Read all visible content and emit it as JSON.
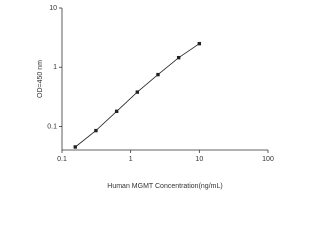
{
  "chart_data": {
    "type": "line",
    "x_label": "Human MGMT Concentration(ng/mL)",
    "y_label": "OD=450 nm",
    "x": [
      0.156,
      0.312,
      0.625,
      1.25,
      2.5,
      5,
      10
    ],
    "series": [
      {
        "color": "#222222",
        "values": [
          0.045,
          0.085,
          0.18,
          0.38,
          0.75,
          1.45,
          2.5
        ]
      }
    ],
    "xlim": [
      0.1,
      100
    ],
    "ylim": [
      0.04,
      10
    ],
    "xticks": [
      0.1,
      1,
      10,
      100
    ],
    "yticks": [
      0.1,
      1,
      10
    ],
    "x_log": true,
    "y_log": true,
    "grid": false,
    "markers": true
  }
}
